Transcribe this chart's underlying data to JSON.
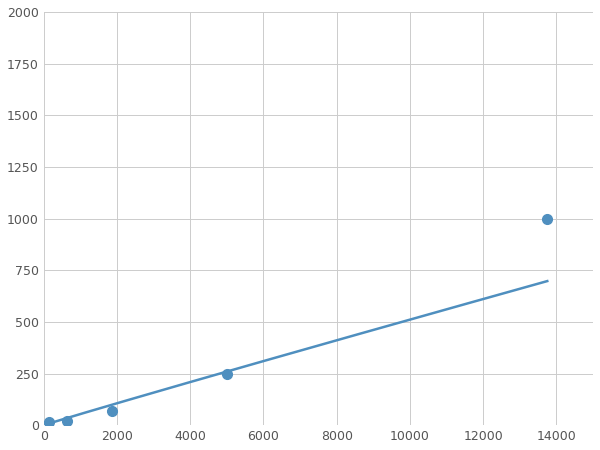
{
  "x_data": [
    156,
    625,
    1875,
    5000,
    13750
  ],
  "y_data": [
    14,
    22,
    70,
    250,
    1000
  ],
  "line_color": "#4f8fbf",
  "marker_color": "#4f8fbf",
  "marker_size": 7,
  "xlim": [
    0,
    15000
  ],
  "ylim": [
    0,
    2000
  ],
  "xticks": [
    0,
    2000,
    4000,
    6000,
    8000,
    10000,
    12000,
    14000
  ],
  "yticks": [
    0,
    250,
    500,
    750,
    1000,
    1250,
    1500,
    1750,
    2000
  ],
  "grid": true,
  "background_color": "#ffffff",
  "line_width": 1.8,
  "figsize": [
    6.0,
    4.5
  ],
  "dpi": 100
}
